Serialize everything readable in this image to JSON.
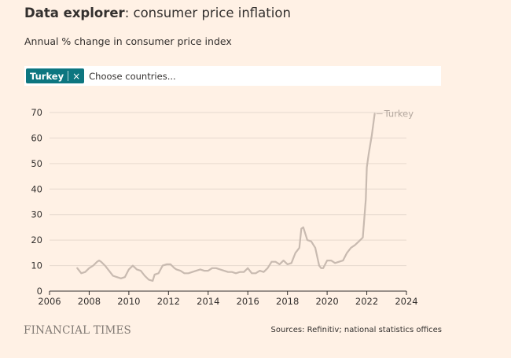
{
  "header": {
    "title_bold": "Data explorer",
    "title_rest": ": consumer price inflation",
    "subtitle": "Annual % change in consumer price index"
  },
  "selector": {
    "chip_label": "Turkey",
    "chip_close": "×",
    "placeholder": "Choose countries..."
  },
  "footer": {
    "logo": "FINANCIAL TIMES",
    "source": "Sources: Refinitiv; national statistics offices"
  },
  "colors": {
    "accent": "#0d7680",
    "background": "#fff1e5",
    "series": "#c8bab0"
  },
  "chart_data": {
    "type": "line",
    "title": "Data explorer: consumer price inflation",
    "subtitle": "Annual % change in consumer price index",
    "xlabel": "",
    "ylabel": "",
    "xlim": [
      2006,
      2024
    ],
    "ylim": [
      0,
      70
    ],
    "xticks": [
      2006,
      2008,
      2010,
      2012,
      2014,
      2016,
      2018,
      2020,
      2022,
      2024
    ],
    "yticks": [
      0,
      10,
      20,
      30,
      40,
      50,
      60,
      70
    ],
    "grid": true,
    "legend": "end-of-line label",
    "series": [
      {
        "name": "Turkey",
        "x": [
          2007.4,
          2007.6,
          2007.8,
          2008.0,
          2008.2,
          2008.4,
          2008.5,
          2008.6,
          2008.8,
          2009.0,
          2009.2,
          2009.4,
          2009.6,
          2009.8,
          2010.0,
          2010.2,
          2010.4,
          2010.6,
          2010.8,
          2011.0,
          2011.2,
          2011.3,
          2011.5,
          2011.7,
          2011.9,
          2012.1,
          2012.3,
          2012.4,
          2012.6,
          2012.8,
          2013.0,
          2013.2,
          2013.4,
          2013.6,
          2013.8,
          2014.0,
          2014.2,
          2014.4,
          2014.6,
          2014.8,
          2015.0,
          2015.2,
          2015.4,
          2015.6,
          2015.8,
          2016.0,
          2016.2,
          2016.4,
          2016.6,
          2016.8,
          2017.0,
          2017.2,
          2017.4,
          2017.6,
          2017.8,
          2018.0,
          2018.2,
          2018.4,
          2018.6,
          2018.7,
          2018.8,
          2019.0,
          2019.2,
          2019.4,
          2019.6,
          2019.7,
          2019.8,
          2020.0,
          2020.2,
          2020.4,
          2020.6,
          2020.8,
          2021.0,
          2021.2,
          2021.4,
          2021.6,
          2021.8,
          2021.95,
          2022.0,
          2022.1,
          2022.25,
          2022.4
        ],
        "values": [
          9,
          7,
          7.5,
          9,
          10,
          11.5,
          12,
          11.5,
          10,
          8,
          6,
          5.5,
          5,
          5.5,
          8.5,
          10,
          8.5,
          8,
          6,
          4.5,
          4,
          6.5,
          7,
          10,
          10.5,
          10.5,
          9,
          8.5,
          8,
          7,
          7,
          7.5,
          8,
          8.5,
          8,
          8,
          9,
          9,
          8.5,
          8,
          7.5,
          7.5,
          7,
          7.5,
          7.5,
          9,
          7,
          7,
          8,
          7.5,
          9,
          11.5,
          11.5,
          10.5,
          12,
          10.5,
          11,
          15,
          17,
          24.5,
          25,
          20,
          19.5,
          17,
          10,
          9,
          9,
          12,
          12,
          11,
          11.5,
          12,
          15,
          17,
          18,
          19.5,
          21,
          36,
          48.5,
          54,
          61,
          69.5
        ]
      }
    ]
  }
}
